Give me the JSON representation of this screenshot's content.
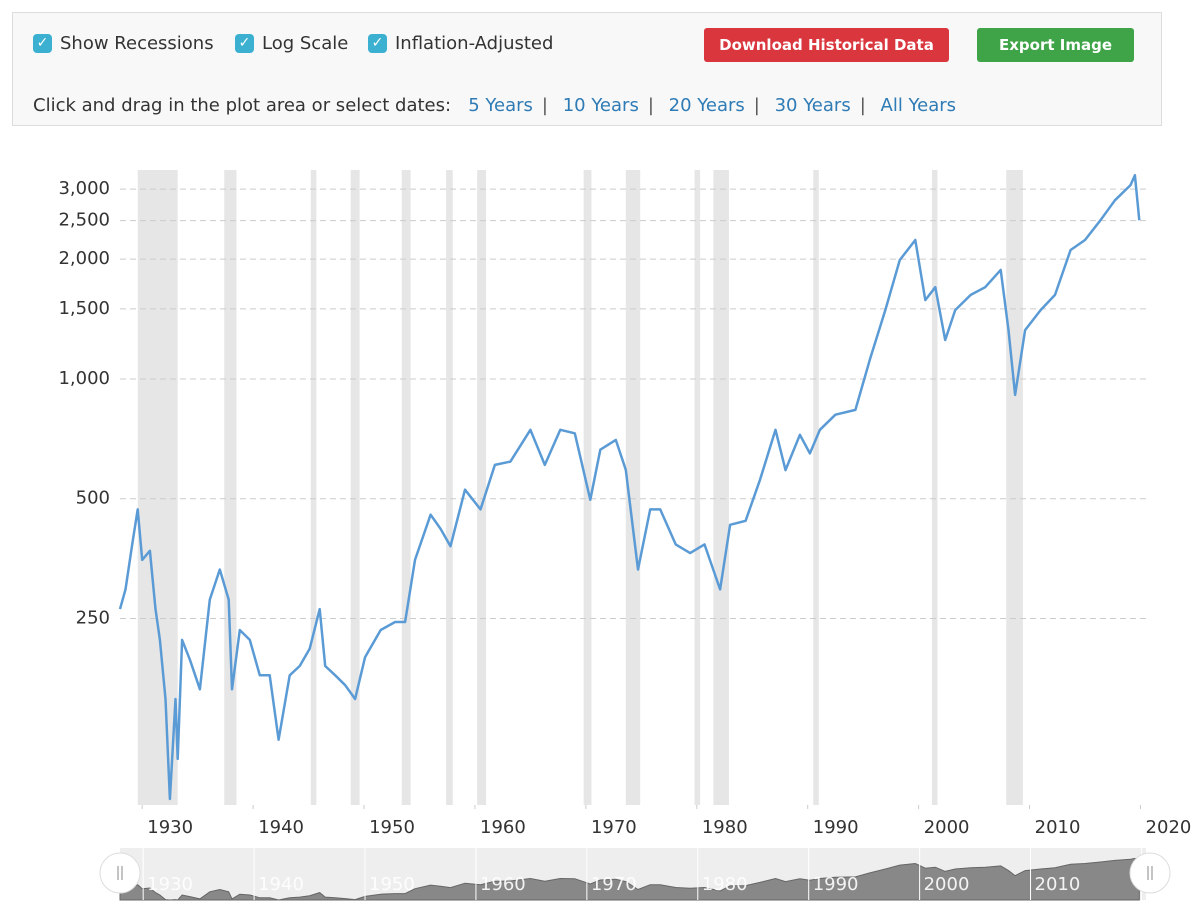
{
  "controls": {
    "checkboxes": [
      "Show Recessions",
      "Log Scale",
      "Inflation-Adjusted"
    ],
    "buttons": [
      "Download Historical Data",
      "Export Image"
    ],
    "prompt": "Click and drag in the plot area or select dates:",
    "ranges": [
      "5 Years",
      "10 Years",
      "20 Years",
      "30 Years",
      "All Years"
    ]
  },
  "chart_data": {
    "type": "line",
    "log_scale": true,
    "grid": true,
    "color": "#5b9bd5",
    "x": [
      1928.0,
      1928.5,
      1929.1,
      1929.6,
      1930.0,
      1930.7,
      1931.2,
      1931.6,
      1932.1,
      1932.5,
      1933.0,
      1933.2,
      1933.6,
      1934.3,
      1935.2,
      1936.1,
      1937.0,
      1937.8,
      1938.1,
      1938.8,
      1939.7,
      1940.6,
      1941.5,
      1942.3,
      1943.3,
      1944.2,
      1945.1,
      1946.0,
      1946.5,
      1947.4,
      1948.3,
      1949.2,
      1950.1,
      1951.5,
      1952.8,
      1953.7,
      1954.6,
      1956.0,
      1956.9,
      1957.8,
      1959.1,
      1960.5,
      1961.8,
      1963.2,
      1965.0,
      1966.3,
      1967.7,
      1969.0,
      1970.4,
      1971.3,
      1972.7,
      1973.6,
      1974.7,
      1975.8,
      1976.7,
      1978.1,
      1979.4,
      1980.7,
      1982.1,
      1983.0,
      1984.4,
      1985.7,
      1987.1,
      1988.0,
      1989.3,
      1990.2,
      1991.1,
      1992.5,
      1994.3,
      1995.6,
      1997.0,
      1998.3,
      1999.7,
      2000.6,
      2001.5,
      2002.4,
      2003.3,
      2004.7,
      2006.0,
      2007.4,
      2008.1,
      2008.7,
      2009.6,
      2011.0,
      2012.3,
      2013.7,
      2015.0,
      2016.4,
      2017.7,
      2019.1,
      2019.5,
      2019.9
    ],
    "values": [
      264,
      296,
      384,
      470,
      351,
      370,
      264,
      221,
      157,
      88,
      157,
      111,
      221,
      197,
      166,
      279,
      332,
      279,
      166,
      234,
      221,
      180,
      180,
      124,
      180,
      190,
      210,
      264,
      190,
      180,
      170,
      157,
      200,
      234,
      245,
      245,
      351,
      456,
      420,
      380,
      527,
      470,
      608,
      620,
      745,
      608,
      745,
      730,
      497,
      664,
      703,
      591,
      332,
      470,
      470,
      384,
      365,
      384,
      296,
      430,
      440,
      558,
      745,
      590,
      724,
      650,
      745,
      813,
      836,
      1117,
      1489,
      1990,
      2234,
      1578,
      1700,
      1253,
      1489,
      1626,
      1700,
      1879,
      1327,
      912,
      1327,
      1489,
      1626,
      2109,
      2234,
      2506,
      2812,
      3069,
      3251,
      2506
    ],
    "recessions": [
      [
        1929.6,
        1933.2
      ],
      [
        1937.4,
        1938.5
      ],
      [
        1945.2,
        1945.7
      ],
      [
        1948.8,
        1949.6
      ],
      [
        1953.4,
        1954.2
      ],
      [
        1957.4,
        1958.0
      ],
      [
        1960.2,
        1961.0
      ],
      [
        1969.8,
        1970.5
      ],
      [
        1973.6,
        1974.9
      ],
      [
        1979.8,
        1980.3
      ],
      [
        1981.5,
        1982.9
      ],
      [
        1990.5,
        1991.0
      ],
      [
        2001.2,
        2001.7
      ],
      [
        2007.9,
        2009.4
      ]
    ],
    "xlim": [
      1928,
      2020.5
    ],
    "xticks": [
      1930,
      1940,
      1950,
      1960,
      1970,
      1980,
      1990,
      2000,
      2010,
      2020
    ],
    "ylim": [
      85,
      3350
    ],
    "yticks": [
      250,
      500,
      {
        "value": 1000,
        "label": "1,000"
      },
      {
        "value": 1500,
        "label": "1,500"
      },
      {
        "value": 2000,
        "label": "2,000"
      },
      {
        "value": 2500,
        "label": "2,500"
      },
      {
        "value": 3000,
        "label": "3,000"
      }
    ]
  }
}
